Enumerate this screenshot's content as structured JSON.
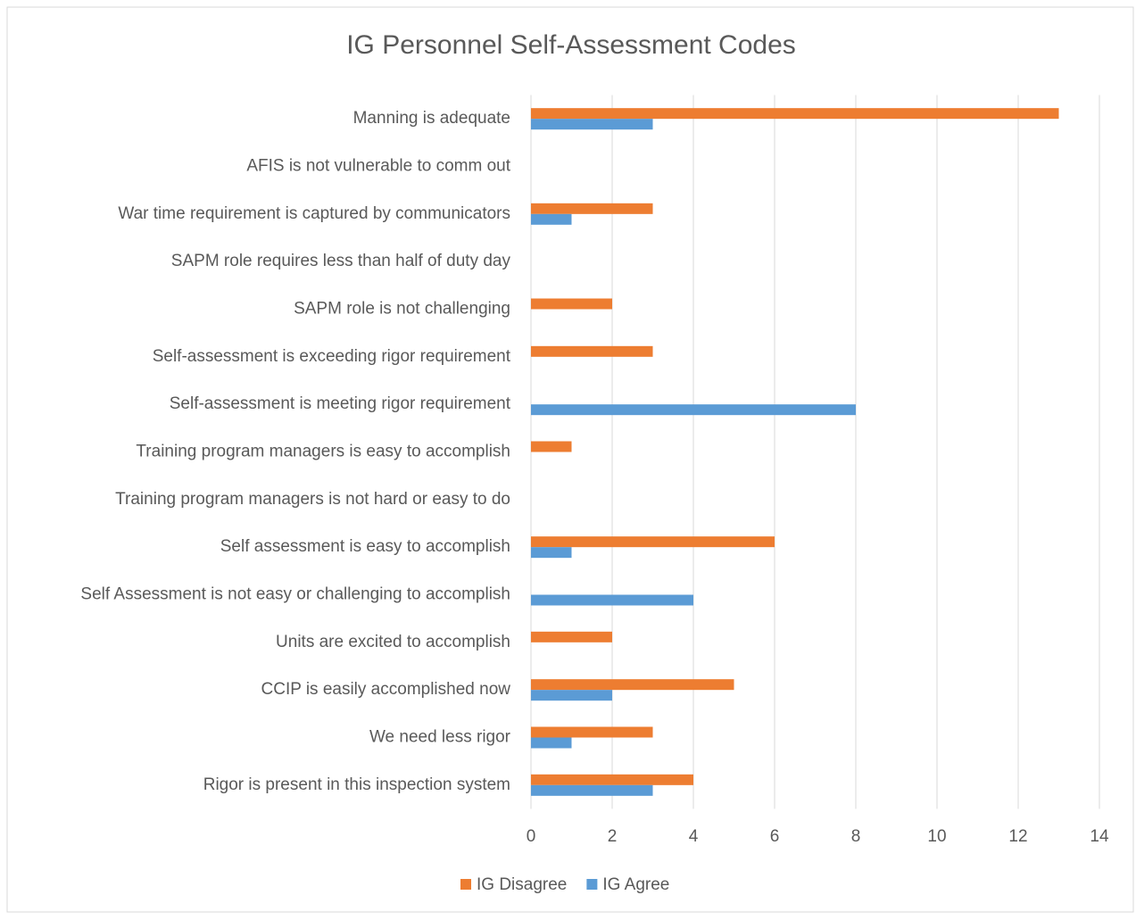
{
  "chart_data": {
    "type": "hbar",
    "title": "IG Personnel Self-Assessment Codes",
    "categories": [
      "Manning is adequate",
      "AFIS is not vulnerable to comm out",
      "War time requirement is captured by communicators",
      "SAPM role requires less than half of duty day",
      "SAPM role is not challenging",
      "Self-assessment is exceeding rigor requirement",
      "Self-assessment is meeting rigor requirement",
      "Training program managers is easy to accomplish",
      "Training program managers is not hard or easy to do",
      "Self assessment is easy to accomplish",
      "Self Assessment is not easy or challenging to accomplish",
      "Units are excited to accomplish",
      "CCIP is easily accomplished now",
      "We need less rigor",
      "Rigor is present in this inspection system"
    ],
    "series": [
      {
        "name": "IG Disagree",
        "color": "#ed7d31",
        "values": [
          13,
          0,
          3,
          0,
          2,
          3,
          0,
          1,
          0,
          6,
          0,
          2,
          5,
          3,
          4
        ]
      },
      {
        "name": "IG Agree",
        "color": "#5b9bd5",
        "values": [
          3,
          0,
          1,
          0,
          0,
          0,
          8,
          0,
          0,
          1,
          4,
          0,
          2,
          1,
          3
        ]
      }
    ],
    "xlim": [
      0,
      14
    ],
    "xticks": [
      0,
      2,
      4,
      6,
      8,
      10,
      12,
      14
    ],
    "grid": true,
    "legend": "bottom"
  }
}
